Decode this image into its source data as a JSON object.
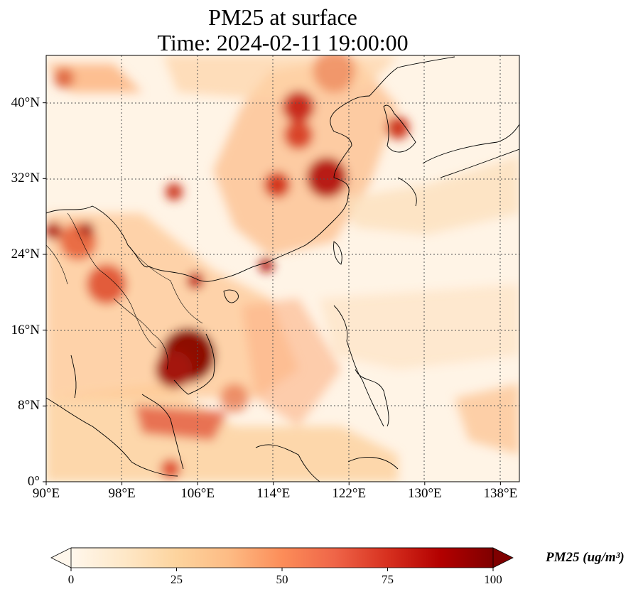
{
  "title": {
    "line1": "PM25 at surface",
    "line2": "Time: 2024-02-11 19:00:00"
  },
  "map": {
    "lon_range": [
      90,
      140
    ],
    "lat_range": [
      0,
      45
    ],
    "lat_ticks": [
      {
        "value": 40,
        "label": "40°N"
      },
      {
        "value": 32,
        "label": "32°N"
      },
      {
        "value": 24,
        "label": "24°N"
      },
      {
        "value": 16,
        "label": "16°N"
      },
      {
        "value": 8,
        "label": "8°N"
      },
      {
        "value": 0,
        "label": "0°"
      }
    ],
    "lon_ticks": [
      {
        "value": 90,
        "label": "90°E"
      },
      {
        "value": 98,
        "label": "98°E"
      },
      {
        "value": 106,
        "label": "106°E"
      },
      {
        "value": 114,
        "label": "114°E"
      },
      {
        "value": 122,
        "label": "122°E"
      },
      {
        "value": 130,
        "label": "130°E"
      },
      {
        "value": 138,
        "label": "138°E"
      }
    ],
    "gridlines": "dotted",
    "colormap": "OrRd"
  },
  "colorbar": {
    "min": 0,
    "max": 100,
    "ticks": [
      {
        "value": 0,
        "label": "0"
      },
      {
        "value": 25,
        "label": "25"
      },
      {
        "value": 50,
        "label": "50"
      },
      {
        "value": 75,
        "label": "75"
      },
      {
        "value": 100,
        "label": "100"
      }
    ],
    "unit_label": "PM25 (ug/m³)",
    "colors": [
      "#fff7ec",
      "#fee8c8",
      "#fdd49e",
      "#fdbb84",
      "#fc8d59",
      "#ef6548",
      "#d7301f",
      "#b30000",
      "#7f0000"
    ]
  }
}
